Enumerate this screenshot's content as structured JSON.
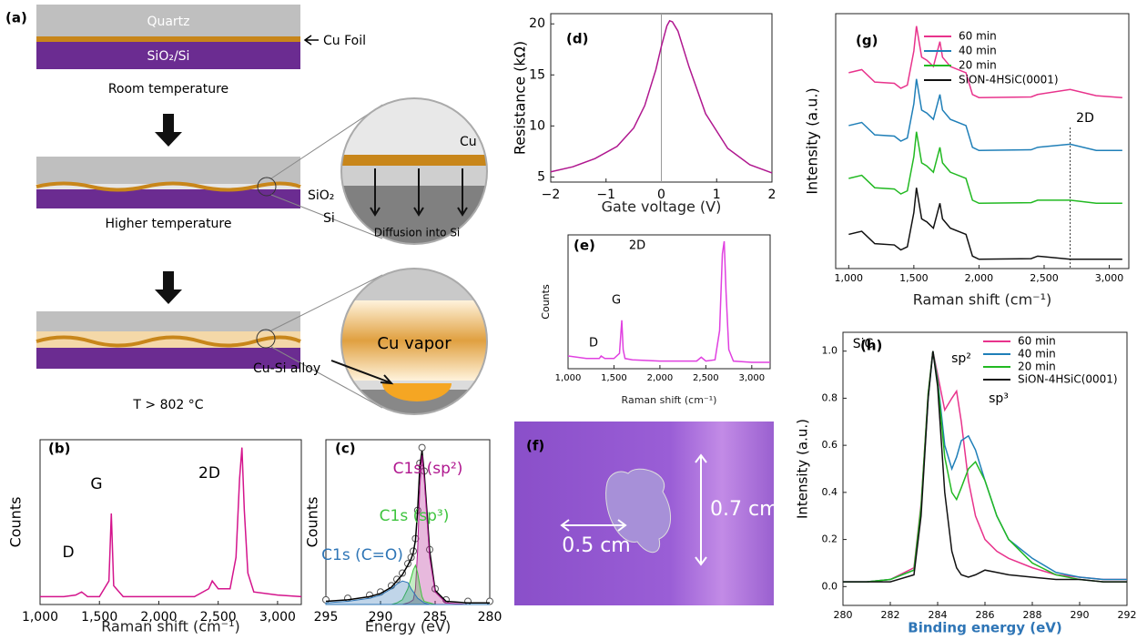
{
  "diagram": {
    "label": "(a)",
    "quartz": "Quartz",
    "sio2_si": "SiO₂/Si",
    "cu_foil": "Cu Foil",
    "room_temperature": "Room temperature",
    "higher_temperature": "Higher temperature",
    "cu": "Cu",
    "sio2": "SiO₂",
    "si": "Si",
    "diffusion": "Diffusion into Si",
    "cu_vapor": "Cu vapor",
    "cu_si_alloy": "Cu-Si alloy",
    "high_t": "T > 802 °C"
  },
  "photo": {
    "label": "(f)",
    "height": "0.7 cm",
    "width": "0.5 cm"
  },
  "chart_data": [
    {
      "type": "line",
      "label": "(b)",
      "xlabel": "Raman shift (cm⁻¹)",
      "ylabel": "Counts",
      "annotations": [
        "D",
        "G",
        "2D"
      ],
      "x": [
        1000,
        1100,
        1200,
        1300,
        1350,
        1400,
        1500,
        1580,
        1600,
        1620,
        1700,
        1900,
        2100,
        2300,
        2420,
        2450,
        2500,
        2600,
        2650,
        2680,
        2700,
        2720,
        2750,
        2800,
        3000,
        3200
      ],
      "series": [
        {
          "color": "#d4148c",
          "values": [
            0.05,
            0.05,
            0.05,
            0.06,
            0.08,
            0.05,
            0.05,
            0.15,
            0.58,
            0.12,
            0.05,
            0.05,
            0.05,
            0.05,
            0.1,
            0.15,
            0.1,
            0.1,
            0.3,
            0.8,
            1.0,
            0.6,
            0.2,
            0.08,
            0.06,
            0.05
          ]
        }
      ],
      "xlim": [
        1000,
        3200
      ],
      "xticks": [
        {
          "value": 1000,
          "label": "1,000"
        },
        {
          "value": 1500,
          "label": "1,500"
        },
        {
          "value": 2000,
          "label": "2,000"
        },
        {
          "value": 2500,
          "label": "2,500"
        },
        {
          "value": 3000,
          "label": "3,000"
        }
      ],
      "ylim": [
        0,
        1.05
      ]
    },
    {
      "type": "line",
      "label": "(c)",
      "xlabel": "Energy (eV)",
      "ylabel": "Counts",
      "x": [
        295,
        293,
        291,
        290,
        289,
        288.5,
        288,
        287.5,
        287.2,
        287,
        286.8,
        286.6,
        286.4,
        286.2,
        286,
        285.5,
        285,
        284,
        282,
        280
      ],
      "series": [
        {
          "color": "#555555",
          "marker": "circle",
          "values": [
            0.03,
            0.04,
            0.06,
            0.08,
            0.12,
            0.16,
            0.2,
            0.26,
            0.3,
            0.34,
            0.42,
            0.6,
            0.9,
            1.0,
            0.85,
            0.35,
            0.1,
            0.03,
            0.02,
            0.02
          ]
        },
        {
          "color": "#000000",
          "values": [
            0.02,
            0.03,
            0.05,
            0.07,
            0.11,
            0.15,
            0.19,
            0.25,
            0.29,
            0.33,
            0.41,
            0.6,
            0.88,
            0.98,
            0.84,
            0.34,
            0.09,
            0.02,
            0.01,
            0.01
          ]
        },
        {
          "name": "C1s (sp²)",
          "color": "#b0178f",
          "fill": true,
          "values": [
            0,
            0,
            0,
            0,
            0,
            0,
            0,
            0.01,
            0.02,
            0.03,
            0.1,
            0.35,
            0.75,
            0.95,
            0.8,
            0.3,
            0.08,
            0.01,
            0,
            0
          ]
        },
        {
          "name": "C1s (sp³)",
          "color": "#3ec43e",
          "fill": true,
          "values": [
            0,
            0,
            0,
            0,
            0,
            0.01,
            0.03,
            0.1,
            0.17,
            0.22,
            0.25,
            0.2,
            0.12,
            0.05,
            0.02,
            0.01,
            0,
            0,
            0,
            0
          ]
        },
        {
          "name": "C1s (C=O)",
          "color": "#2e75b6",
          "fill": true,
          "values": [
            0.01,
            0.02,
            0.04,
            0.06,
            0.1,
            0.13,
            0.15,
            0.14,
            0.1,
            0.08,
            0.06,
            0.04,
            0.03,
            0.02,
            0.01,
            0,
            0,
            0,
            0,
            0
          ]
        }
      ],
      "xlim": [
        295,
        280
      ],
      "xticks": [
        295,
        290,
        285,
        280
      ],
      "ylim": [
        0,
        1.05
      ]
    },
    {
      "type": "line",
      "label": "(d)",
      "xlabel": "Gate voltage (V)",
      "ylabel": "Resistance (kΩ)",
      "vline": 0,
      "x": [
        -2,
        -1.6,
        -1.2,
        -0.8,
        -0.5,
        -0.3,
        -0.1,
        0,
        0.1,
        0.15,
        0.2,
        0.3,
        0.5,
        0.8,
        1.2,
        1.6,
        2
      ],
      "series": [
        {
          "color": "#b0178f",
          "values": [
            5.5,
            6.0,
            6.8,
            8.0,
            9.8,
            12.0,
            15.5,
            17.8,
            19.8,
            20.3,
            20.2,
            19.3,
            15.8,
            11.2,
            7.8,
            6.2,
            5.4
          ]
        }
      ],
      "xlim": [
        -2,
        2
      ],
      "xticks": [
        {
          "value": -2,
          "label": "−2"
        },
        {
          "value": -1,
          "label": "−1"
        },
        0,
        1,
        2
      ],
      "ylim": [
        4.5,
        21
      ],
      "yticks": [
        5,
        10,
        15,
        20
      ]
    },
    {
      "type": "line",
      "label": "(e)",
      "xlabel": "Raman shift (cm⁻¹)",
      "ylabel": "Counts",
      "annotations": [
        "D",
        "G",
        "2D"
      ],
      "x": [
        1000,
        1200,
        1340,
        1360,
        1400,
        1500,
        1560,
        1585,
        1600,
        1620,
        1700,
        2000,
        2400,
        2450,
        2500,
        2600,
        2650,
        2680,
        2700,
        2720,
        2750,
        2800,
        3000,
        3200
      ],
      "series": [
        {
          "color": "#e040e0",
          "values": [
            0.1,
            0.08,
            0.08,
            0.1,
            0.08,
            0.08,
            0.12,
            0.38,
            0.15,
            0.08,
            0.07,
            0.06,
            0.06,
            0.09,
            0.06,
            0.07,
            0.3,
            0.9,
            1.0,
            0.6,
            0.15,
            0.06,
            0.05,
            0.05
          ]
        }
      ],
      "xlim": [
        1000,
        3200
      ],
      "xticks": [
        {
          "value": 1000,
          "label": "1,000"
        },
        {
          "value": 1500,
          "label": "1,500"
        },
        {
          "value": 2000,
          "label": "2,000"
        },
        {
          "value": 2500,
          "label": "2,500"
        },
        {
          "value": 3000,
          "label": "3,000"
        }
      ],
      "ylim": [
        0,
        1.05
      ]
    },
    {
      "type": "line",
      "label": "(g)",
      "xlabel": "Raman shift (cm⁻¹)",
      "ylabel": "Intensity (a.u.)",
      "annotations": [
        "2D"
      ],
      "vline": 2700,
      "legend": true,
      "x": [
        1000,
        1100,
        1200,
        1350,
        1400,
        1450,
        1500,
        1520,
        1560,
        1600,
        1650,
        1700,
        1720,
        1780,
        1900,
        1950,
        2000,
        2400,
        2450,
        2700,
        2900,
        3100
      ],
      "series": [
        {
          "name": "60 min",
          "color": "#e8338c",
          "values": [
            3.05,
            3.1,
            2.9,
            2.88,
            2.8,
            2.85,
            3.4,
            3.8,
            3.3,
            3.25,
            3.15,
            3.55,
            3.3,
            3.15,
            3.05,
            2.7,
            2.65,
            2.66,
            2.7,
            2.78,
            2.68,
            2.65
          ]
        },
        {
          "name": "40 min",
          "color": "#1f7fb8",
          "values": [
            2.2,
            2.25,
            2.05,
            2.03,
            1.95,
            2.0,
            2.55,
            2.95,
            2.45,
            2.4,
            2.3,
            2.7,
            2.45,
            2.3,
            2.2,
            1.85,
            1.8,
            1.81,
            1.85,
            1.9,
            1.8,
            1.8
          ]
        },
        {
          "name": "20 min",
          "color": "#22b922",
          "values": [
            1.35,
            1.4,
            1.2,
            1.18,
            1.1,
            1.15,
            1.7,
            2.1,
            1.6,
            1.55,
            1.45,
            1.85,
            1.6,
            1.45,
            1.35,
            1.0,
            0.95,
            0.96,
            1.0,
            1.0,
            0.95,
            0.95
          ]
        },
        {
          "name": "SiON-4HSiC(0001)",
          "color": "#111111",
          "values": [
            0.45,
            0.5,
            0.3,
            0.28,
            0.2,
            0.25,
            0.8,
            1.2,
            0.7,
            0.65,
            0.55,
            0.95,
            0.7,
            0.55,
            0.45,
            0.1,
            0.05,
            0.06,
            0.1,
            0.05,
            0.05,
            0.05
          ]
        }
      ],
      "xlim": [
        900,
        3150
      ],
      "xticks": [
        {
          "value": 1000,
          "label": "1,000"
        },
        {
          "value": 1500,
          "label": "1,500"
        },
        {
          "value": 2000,
          "label": "2,000"
        },
        {
          "value": 2500,
          "label": "2,500"
        },
        {
          "value": 3000,
          "label": "3,000"
        }
      ],
      "ylim": [
        -0.1,
        4
      ]
    },
    {
      "type": "line",
      "label": "(h)",
      "xlabel": "Binding energy (eV)",
      "xlabel_color": "#2e75b6",
      "ylabel": "Intensity (a.u.)",
      "annotations": [
        "SiC",
        "sp²",
        "sp³"
      ],
      "legend": true,
      "x": [
        280,
        281,
        282,
        283,
        283.3,
        283.6,
        283.8,
        284,
        284.3,
        284.6,
        284.8,
        285,
        285.3,
        285.6,
        286,
        286.5,
        287,
        288,
        289,
        290,
        291,
        292
      ],
      "series": [
        {
          "name": "60 min",
          "color": "#e8338c",
          "values": [
            0.02,
            0.02,
            0.03,
            0.08,
            0.35,
            0.82,
            1.0,
            0.9,
            0.75,
            0.8,
            0.83,
            0.7,
            0.45,
            0.3,
            0.2,
            0.15,
            0.12,
            0.08,
            0.05,
            0.04,
            0.03,
            0.03
          ]
        },
        {
          "name": "40 min",
          "color": "#1f7fb8",
          "values": [
            0.02,
            0.02,
            0.03,
            0.07,
            0.33,
            0.8,
            1.0,
            0.88,
            0.6,
            0.5,
            0.55,
            0.62,
            0.64,
            0.58,
            0.45,
            0.3,
            0.2,
            0.12,
            0.06,
            0.04,
            0.03,
            0.03
          ]
        },
        {
          "name": "20 min",
          "color": "#22b922",
          "values": [
            0.02,
            0.02,
            0.03,
            0.07,
            0.34,
            0.82,
            1.0,
            0.87,
            0.55,
            0.4,
            0.37,
            0.42,
            0.5,
            0.53,
            0.45,
            0.3,
            0.2,
            0.1,
            0.05,
            0.03,
            0.02,
            0.02
          ]
        },
        {
          "name": "SiON-4HSiC(0001)",
          "color": "#111111",
          "values": [
            0.02,
            0.02,
            0.02,
            0.05,
            0.3,
            0.8,
            1.0,
            0.85,
            0.4,
            0.15,
            0.08,
            0.05,
            0.04,
            0.05,
            0.07,
            0.06,
            0.05,
            0.04,
            0.03,
            0.03,
            0.02,
            0.02
          ]
        }
      ],
      "xlim": [
        280,
        292
      ],
      "xticks": [
        280,
        282,
        284,
        286,
        288,
        290,
        292
      ],
      "ylim": [
        -0.08,
        1.08
      ],
      "yticks": [
        {
          "value": 0,
          "label": "0.0"
        },
        0.2,
        0.4,
        0.6,
        0.8,
        {
          "value": 1,
          "label": "1.0"
        }
      ]
    }
  ]
}
